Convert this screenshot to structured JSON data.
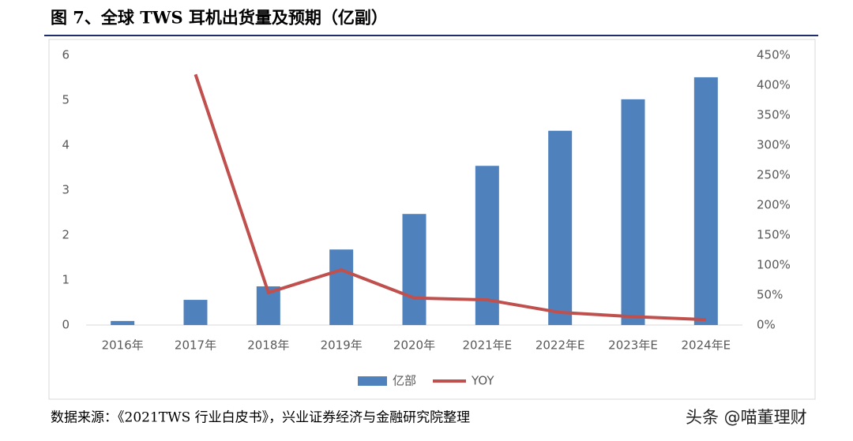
{
  "chart_data": {
    "type": "bar-line",
    "title": "图 7、全球 TWS 耳机出货量及预期（亿副）",
    "source": "数据来源：《2021TWS 行业白皮书》，兴业证券经济与金融研究院整理",
    "watermark": "头条 @喵董理财",
    "categories": [
      "2016年",
      "2017年",
      "2018年",
      "2019年",
      "2020年",
      "2021年E",
      "2022年E",
      "2023年E",
      "2024年E"
    ],
    "series": [
      {
        "name": "亿部",
        "type": "bar",
        "color": "#4f81bd",
        "values": [
          0.09,
          0.56,
          0.86,
          1.68,
          2.47,
          3.54,
          4.32,
          5.02,
          5.51
        ]
      },
      {
        "name": "YOY",
        "type": "line",
        "axis": "y2",
        "color": "#c0504d",
        "values": [
          null,
          418,
          54,
          92,
          45,
          42,
          21,
          14,
          9
        ]
      }
    ],
    "ylim": [
      0,
      6
    ],
    "yticks": [
      0,
      1,
      2,
      3,
      4,
      5,
      6
    ],
    "y2lim": [
      0,
      450
    ],
    "y2ticks": [
      {
        "value": 0,
        "label": "0%"
      },
      {
        "value": 50,
        "label": "50%"
      },
      {
        "value": 100,
        "label": "100%"
      },
      {
        "value": 150,
        "label": "150%"
      },
      {
        "value": 200,
        "label": "200%"
      },
      {
        "value": 250,
        "label": "250%"
      },
      {
        "value": 300,
        "label": "300%"
      },
      {
        "value": 350,
        "label": "350%"
      },
      {
        "value": 400,
        "label": "400%"
      },
      {
        "value": 450,
        "label": "450%"
      }
    ],
    "legend": "bottom"
  }
}
